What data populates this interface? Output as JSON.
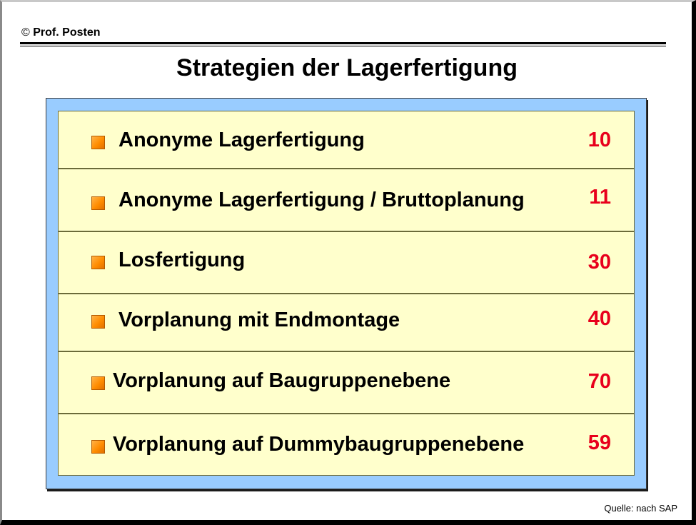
{
  "header": {
    "copyright_symbol": "©",
    "author": "Prof. Posten"
  },
  "title": "Strategien der Lagerfertigung",
  "items": [
    {
      "label": "Anonyme Lagerfertigung",
      "number": "10"
    },
    {
      "label": "Anonyme Lagerfertigung / Bruttoplanung",
      "number": "11"
    },
    {
      "label": "Losfertigung",
      "number": "30"
    },
    {
      "label": "Vorplanung mit Endmontage",
      "number": "40"
    },
    {
      "label": "Vorplanung auf  Baugruppenebene",
      "number": "70"
    },
    {
      "label": "Vorplanung auf Dummybaugruppenebene",
      "number": "59"
    }
  ],
  "source": "Quelle: nach SAP",
  "colors": {
    "frame": "#99ccff",
    "panel": "#ffffcc",
    "bullet": "#ff8c00",
    "number": "#e8001c"
  }
}
